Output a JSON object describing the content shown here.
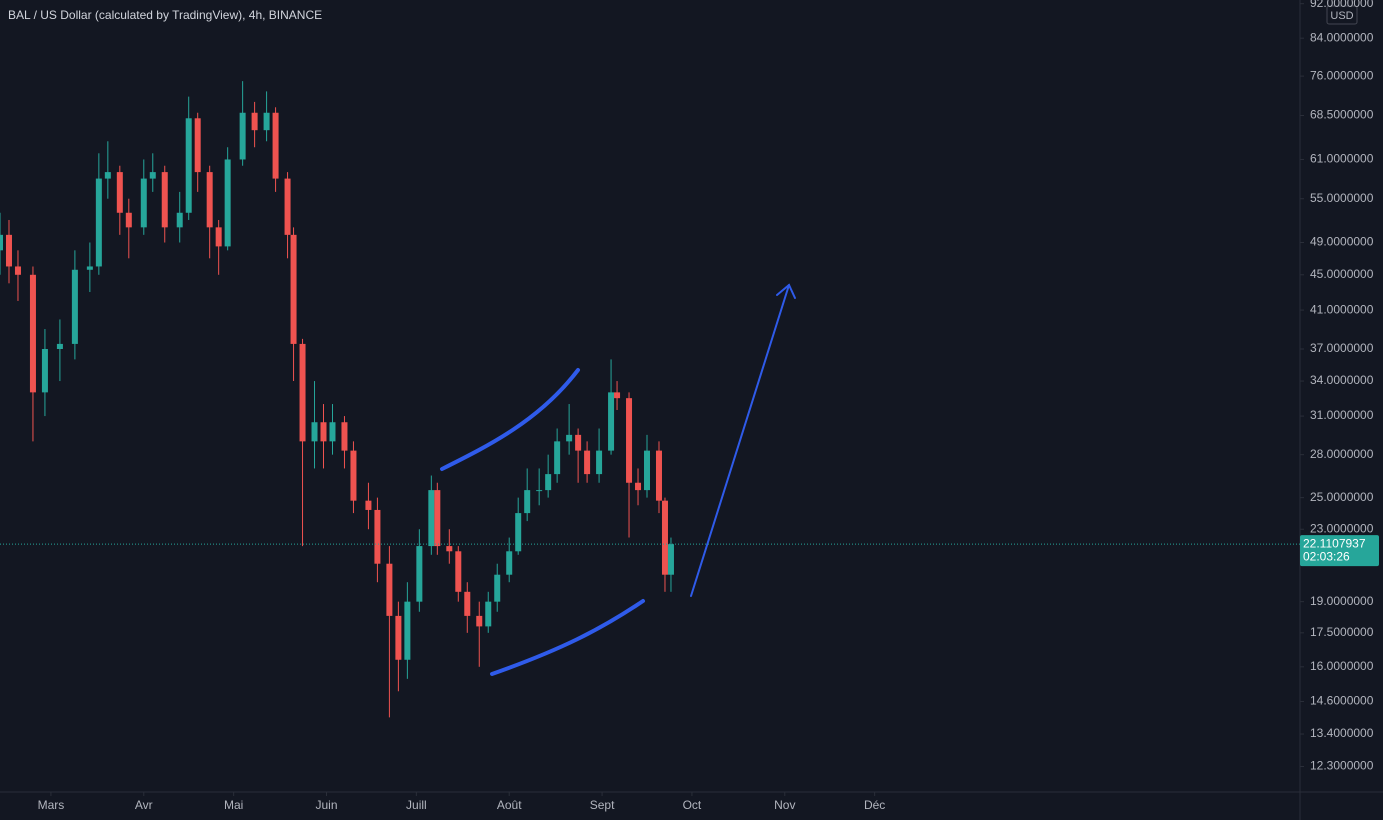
{
  "chart_data": {
    "type": "candlestick",
    "title": "BAL / US Dollar (calculated by TradingView), 4h, BINANCE",
    "currency": "USD",
    "countdown": "02:03:26",
    "last_price": 22.1107937,
    "log_scale": true,
    "up_color": "#26a69a",
    "down_color": "#ef5350",
    "x": [
      -17,
      -14,
      -11,
      -6,
      -2,
      3,
      8,
      13,
      16,
      19,
      23,
      26,
      31,
      34,
      38,
      43,
      46,
      49,
      53,
      56,
      59,
      64,
      68,
      72,
      75,
      79,
      81,
      84,
      88,
      91,
      94,
      98,
      101,
      106,
      109,
      113,
      116,
      119,
      123,
      127,
      129,
      133,
      136,
      139,
      143,
      146,
      149,
      153,
      156,
      159,
      163,
      166,
      169,
      173,
      176,
      179,
      183,
      187,
      189,
      193,
      196,
      199,
      203,
      205,
      207
    ],
    "open": [
      48,
      50,
      46,
      45,
      33,
      37,
      37.5,
      45.6,
      46,
      58,
      59,
      53,
      51,
      58,
      59,
      51,
      53,
      68,
      59,
      51,
      48.5,
      61,
      69,
      65.9,
      69,
      58,
      50,
      37.5,
      29,
      30.5,
      29,
      30.5,
      28.3,
      24.8,
      24.2,
      21,
      18.3,
      16.3,
      19,
      22,
      25.5,
      22,
      21.7,
      19.5,
      18.3,
      17.8,
      19,
      20.4,
      21.7,
      24,
      25.5,
      25.5,
      26.6,
      29,
      29.5,
      28.3,
      26.6,
      28.3,
      33,
      32.5,
      26,
      25.5,
      28.3,
      24.8,
      20.4
    ],
    "high": [
      53,
      52,
      48,
      46,
      39,
      40,
      48,
      49,
      62,
      64,
      60,
      55,
      61,
      62,
      60,
      56,
      72,
      69,
      60,
      52,
      63,
      75,
      71,
      73,
      70,
      59,
      51,
      38,
      34,
      32,
      32,
      31,
      29,
      26,
      25,
      22,
      19,
      20,
      23,
      26.5,
      26,
      23,
      22,
      20,
      19,
      19.5,
      21,
      22.5,
      25,
      27,
      27,
      28,
      30,
      32,
      30,
      29,
      30,
      36,
      34,
      33,
      27,
      29.5,
      29,
      25,
      22.5
    ],
    "low": [
      45,
      44,
      42,
      29,
      31,
      34,
      36,
      43,
      45,
      55,
      50,
      47,
      50,
      56,
      49,
      49,
      52,
      56,
      47,
      45,
      48,
      60,
      63,
      64,
      56,
      47,
      34,
      22,
      27,
      27,
      28,
      27,
      24,
      23,
      20,
      14,
      15,
      15.5,
      18.5,
      21.5,
      21.5,
      21,
      19,
      17.5,
      16,
      17.5,
      18.5,
      20,
      21.5,
      23.5,
      24.5,
      25,
      26,
      28,
      26,
      26,
      26,
      28,
      31.5,
      22.5,
      24.5,
      25,
      24,
      19.5,
      19.5
    ],
    "close": [
      50,
      46,
      45,
      33,
      37,
      37.5,
      45.6,
      46,
      58,
      59,
      53,
      51,
      58,
      59,
      51,
      53,
      68,
      59,
      51,
      48.5,
      61,
      69,
      65.9,
      69,
      58,
      50,
      37.5,
      29,
      30.5,
      29,
      30.5,
      28.3,
      24.8,
      24.2,
      21,
      18.3,
      16.3,
      19,
      22,
      25.5,
      22,
      21.7,
      19.5,
      18.3,
      17.8,
      19,
      20.4,
      21.7,
      24,
      25.5,
      25.5,
      26.6,
      29,
      29.5,
      28.3,
      26.6,
      28.3,
      33,
      32.5,
      26,
      25.5,
      28.3,
      24.8,
      20.4,
      22.1107937
    ],
    "xlim": [
      -17,
      417
    ],
    "xticks": [
      {
        "value": 0,
        "label": "Mars"
      },
      {
        "value": 31,
        "label": "Avr"
      },
      {
        "value": 61,
        "label": "Mai"
      },
      {
        "value": 92,
        "label": "Juin"
      },
      {
        "value": 122,
        "label": "Juill"
      },
      {
        "value": 153,
        "label": "Août"
      },
      {
        "value": 184,
        "label": "Sept"
      },
      {
        "value": 214,
        "label": "Oct"
      },
      {
        "value": 245,
        "label": "Nov"
      },
      {
        "value": 275,
        "label": "Déc"
      }
    ],
    "ylim": [
      11.5,
      92.9
    ],
    "yticks": [
      {
        "value": 92,
        "label": "92.0000000"
      },
      {
        "value": 84,
        "label": "84.0000000"
      },
      {
        "value": 76,
        "label": "76.0000000"
      },
      {
        "value": 68.5,
        "label": "68.5000000"
      },
      {
        "value": 61,
        "label": "61.0000000"
      },
      {
        "value": 55,
        "label": "55.0000000"
      },
      {
        "value": 49,
        "label": "49.0000000"
      },
      {
        "value": 45,
        "label": "45.0000000"
      },
      {
        "value": 41,
        "label": "41.0000000"
      },
      {
        "value": 37,
        "label": "37.0000000"
      },
      {
        "value": 34,
        "label": "34.0000000"
      },
      {
        "value": 31,
        "label": "31.0000000"
      },
      {
        "value": 28,
        "label": "28.0000000"
      },
      {
        "value": 25,
        "label": "25.0000000"
      },
      {
        "value": 23,
        "label": "23.0000000"
      },
      {
        "value": 19,
        "label": "19.0000000"
      },
      {
        "value": 17.5,
        "label": "17.5000000"
      },
      {
        "value": 16,
        "label": "16.0000000"
      },
      {
        "value": 14.6,
        "label": "14.6000000"
      },
      {
        "value": 13.4,
        "label": "13.4000000"
      },
      {
        "value": 12.3,
        "label": "12.3000000"
      }
    ]
  }
}
